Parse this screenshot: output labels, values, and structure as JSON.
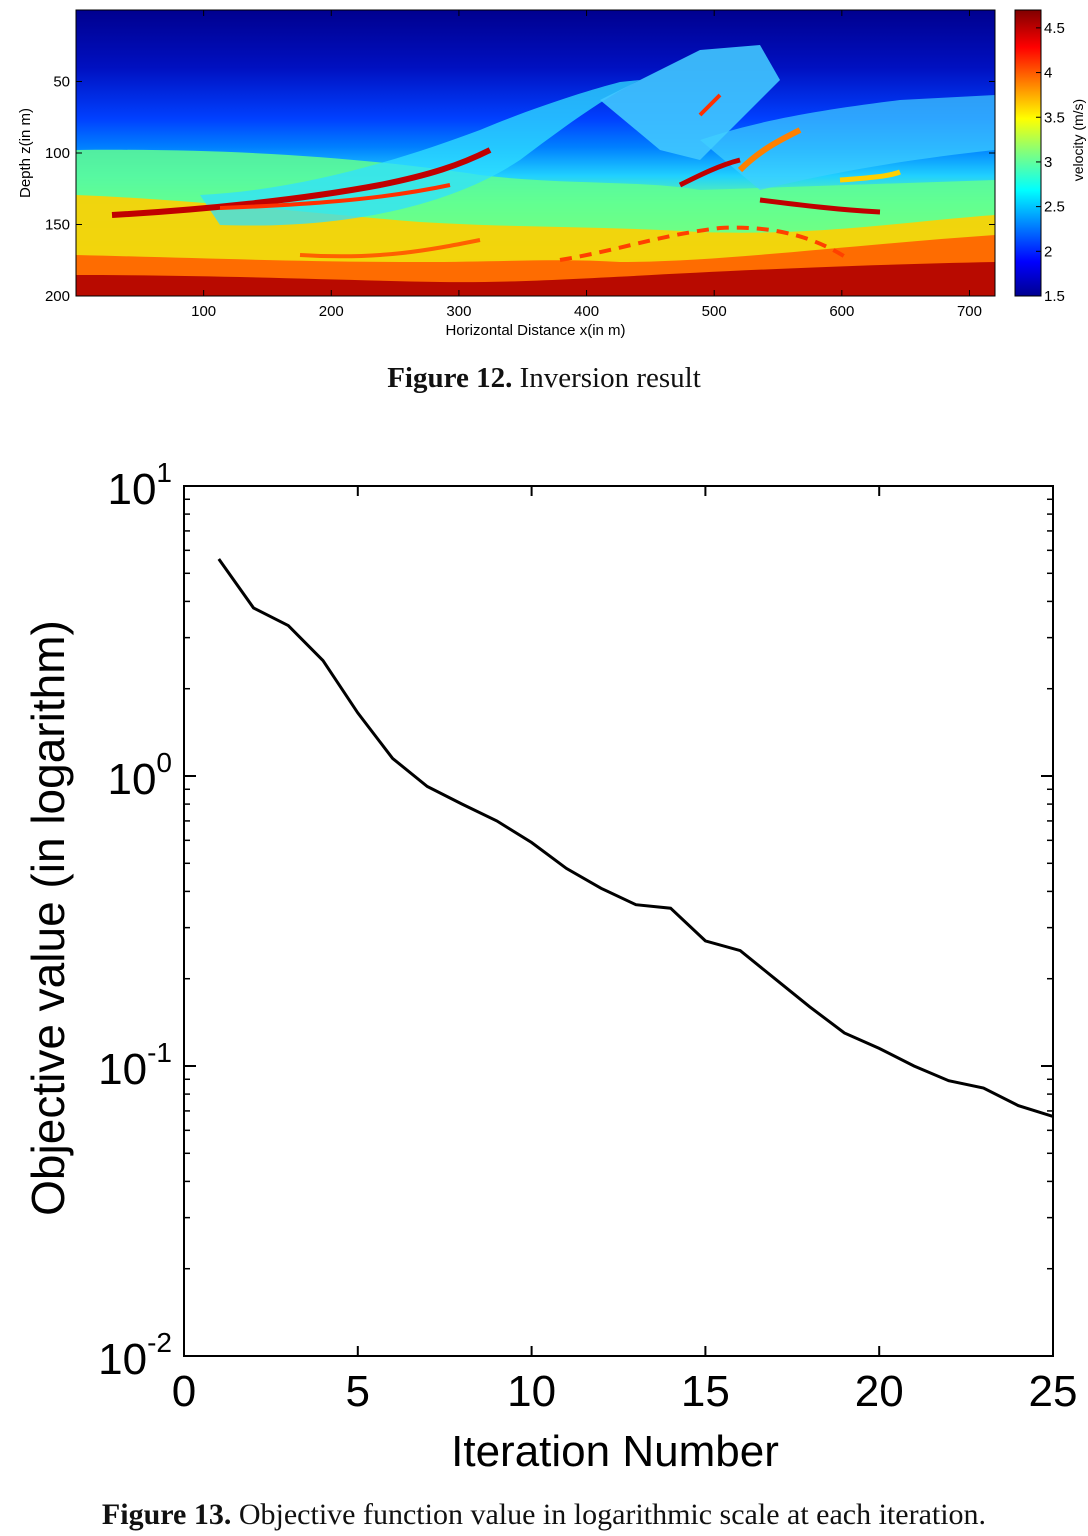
{
  "figures": [
    {
      "figure_label": "Figure 12.",
      "caption": "Inversion result"
    },
    {
      "figure_label": "Figure 13.",
      "caption": "Objective function value in logarithmic scale at each iteration."
    }
  ],
  "chart_data": [
    {
      "type": "heatmap",
      "xlabel": "Horizontal Distance x(in m)",
      "ylabel": "Depth z(in m)",
      "xticks": [
        "100",
        "200",
        "300",
        "400",
        "500",
        "600",
        "700"
      ],
      "yticks": [
        "50",
        "100",
        "150",
        "200"
      ],
      "xlim": [
        0,
        720
      ],
      "ylim": [
        0,
        200
      ],
      "y_inverted": true,
      "colorbar": {
        "label": "velocity (m/s)",
        "ticks": [
          "1.5",
          "2",
          "2.5",
          "3",
          "3.5",
          "4",
          "4.5"
        ],
        "range": [
          1.5,
          4.7
        ],
        "colormap": "jet"
      }
    },
    {
      "type": "line",
      "xlabel": "Iteration Number",
      "ylabel": "Objective value (in logarithm)",
      "xlim": [
        0,
        25
      ],
      "ylim": [
        0.01,
        10
      ],
      "y_scale": "log",
      "grid": false,
      "xticks": [
        "0",
        "5",
        "10",
        "15",
        "20",
        "25"
      ],
      "yticks": [
        {
          "base": "10",
          "exp": "1",
          "value": 10
        },
        {
          "base": "10",
          "exp": "0",
          "value": 1
        },
        {
          "base": "10",
          "exp": "-1",
          "value": 0.1
        },
        {
          "base": "10",
          "exp": "-2",
          "value": 0.01
        }
      ],
      "series": [
        {
          "color": "#000000",
          "x": [
            1,
            2,
            3,
            4,
            5,
            6,
            7,
            8,
            9,
            10,
            11,
            12,
            13,
            14,
            15,
            16,
            17,
            18,
            19,
            20,
            21,
            22,
            23,
            24,
            25
          ],
          "y": [
            5.6,
            3.8,
            3.3,
            2.5,
            1.65,
            1.15,
            0.92,
            0.8,
            0.7,
            0.59,
            0.48,
            0.41,
            0.36,
            0.35,
            0.27,
            0.25,
            0.2,
            0.16,
            0.13,
            0.115,
            0.1,
            0.089,
            0.084,
            0.073,
            0.067
          ]
        }
      ]
    }
  ]
}
